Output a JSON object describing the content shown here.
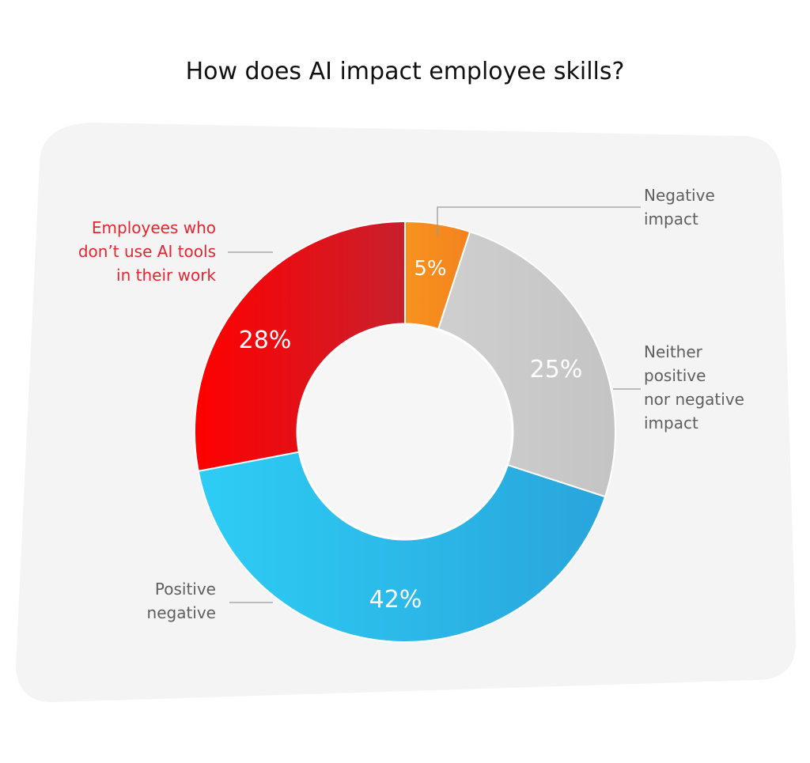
{
  "chart_data": {
    "type": "pie",
    "title": "How does AI impact employee skills?",
    "unit": "%",
    "slices": [
      {
        "label": "Negative impact",
        "label_lines": [
          "Negative",
          "impact"
        ],
        "value": 5,
        "display": "5%",
        "color": "#f7931e",
        "color_end": "#f4821f"
      },
      {
        "label": "Neither positive nor negative impact",
        "label_lines": [
          "Neither",
          "positive",
          "nor negative",
          "impact"
        ],
        "value": 25,
        "display": "25%",
        "color": "#cfcfcf",
        "color_end": "#c4c4c4"
      },
      {
        "label": "Positive negative",
        "label_lines": [
          "Positive",
          "negative"
        ],
        "value": 42,
        "display": "42%",
        "color": "#2ecdf5",
        "color_end": "#29a5dc"
      },
      {
        "label": "Employees who don't use AI tools in their work",
        "label_lines": [
          "Employees who",
          "don’t use AI tools",
          "in their work"
        ],
        "value": 28,
        "display": "28%",
        "color": "#ff0000",
        "color_end": "#c8202d"
      }
    ],
    "colors": {
      "panel": "#f4f4f4",
      "title": "#111111",
      "label": "#5f5f5f",
      "highlight_label": "#e3262f",
      "leader_line": "#9a9a9a"
    }
  }
}
